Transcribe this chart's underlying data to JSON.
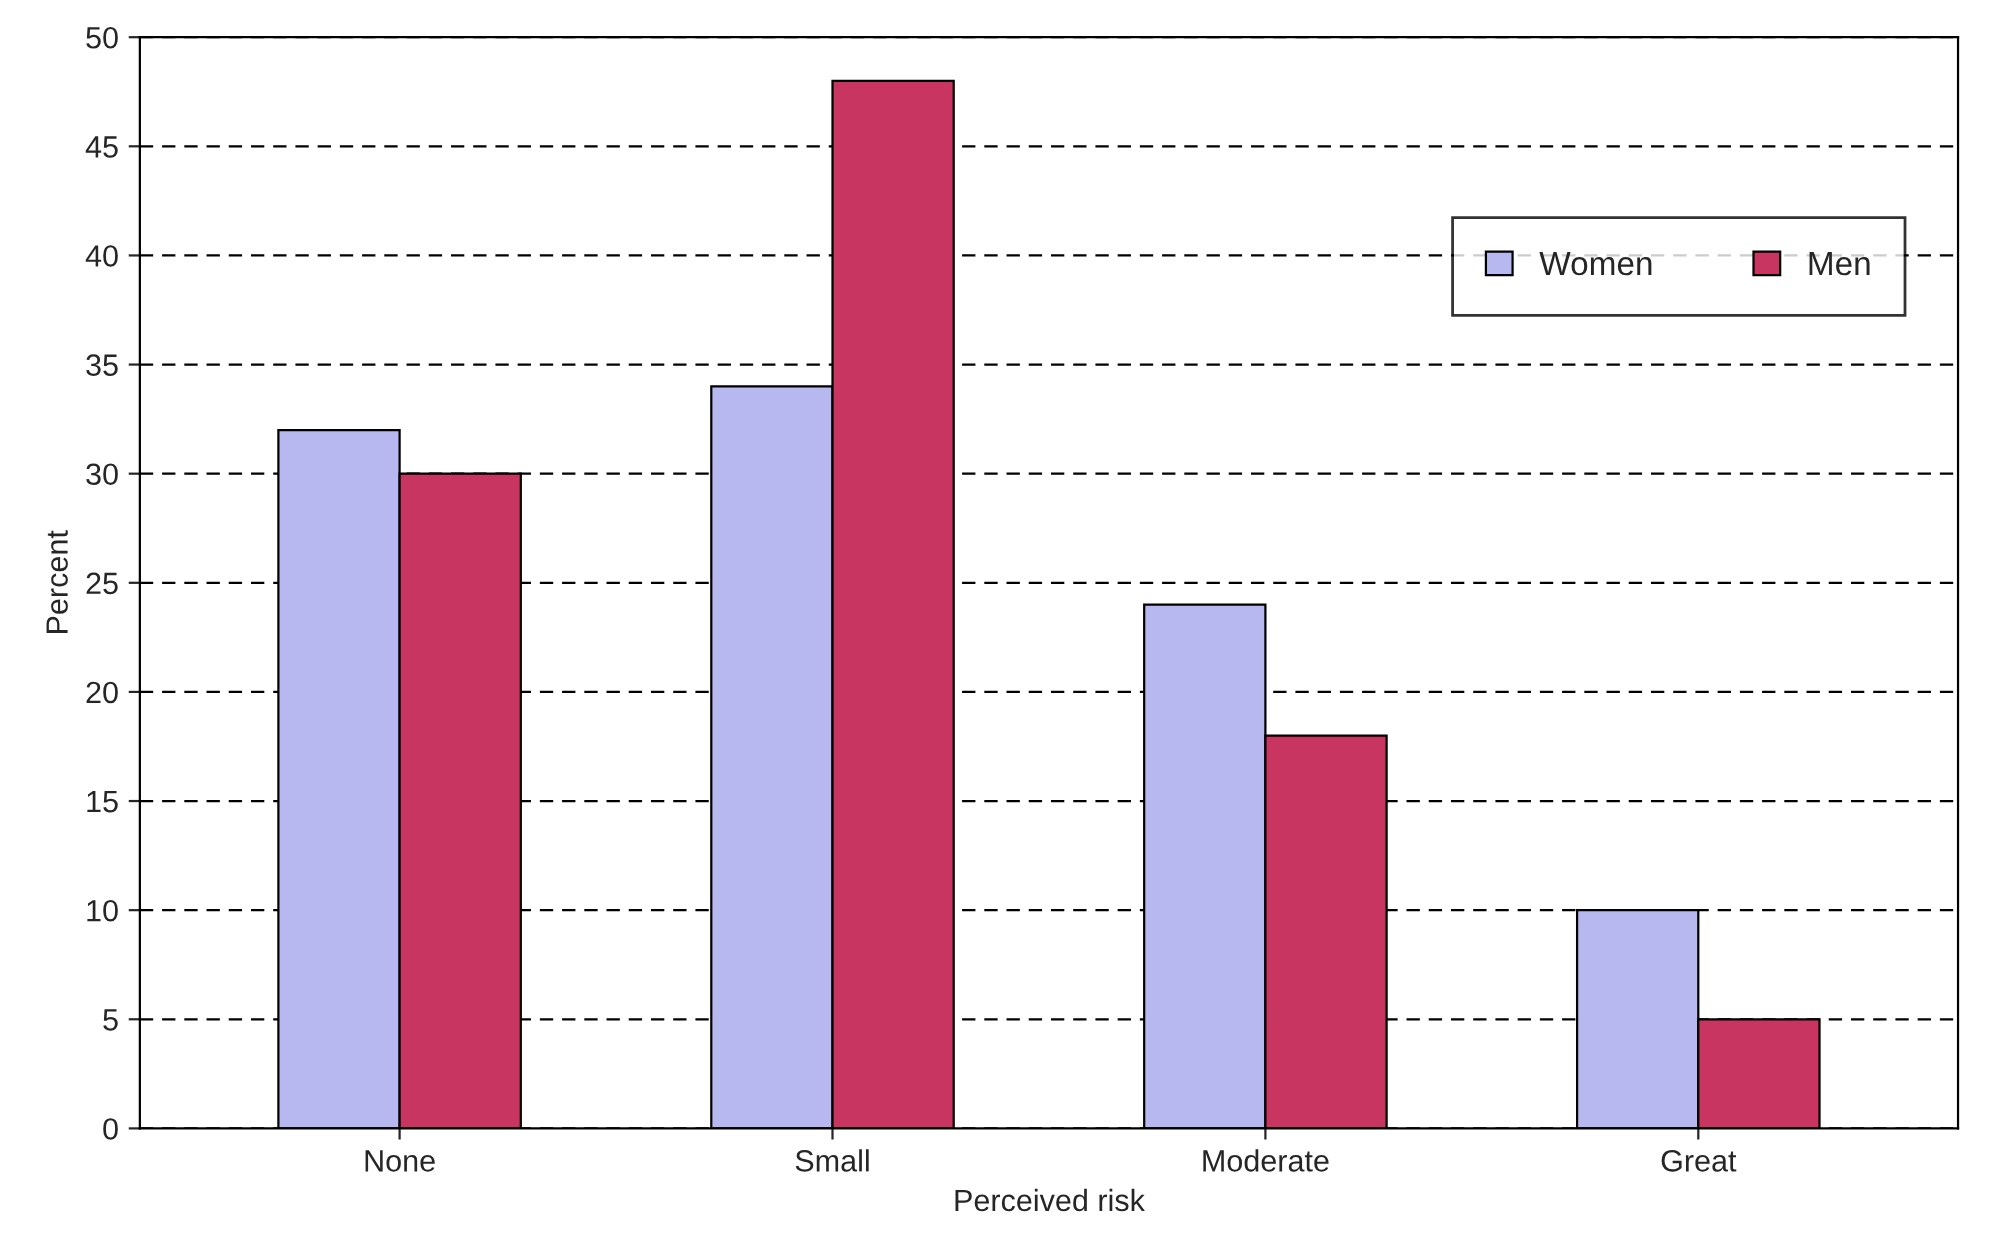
{
  "chart_data": {
    "type": "bar",
    "xlabel": "Perceived risk",
    "ylabel": "Percent",
    "categories": [
      "None",
      "Small",
      "Moderate",
      "Great"
    ],
    "series": [
      {
        "name": "Women",
        "color": "#b8b8f0",
        "values": [
          32,
          34,
          24,
          10
        ]
      },
      {
        "name": "Men",
        "color": "#c83560",
        "values": [
          30,
          48,
          18,
          5
        ]
      }
    ],
    "ylim": [
      0,
      50
    ],
    "yticks": [
      0,
      5,
      10,
      15,
      20,
      25,
      30,
      35,
      40,
      45,
      50
    ],
    "grid": "y",
    "legend": "top right"
  }
}
